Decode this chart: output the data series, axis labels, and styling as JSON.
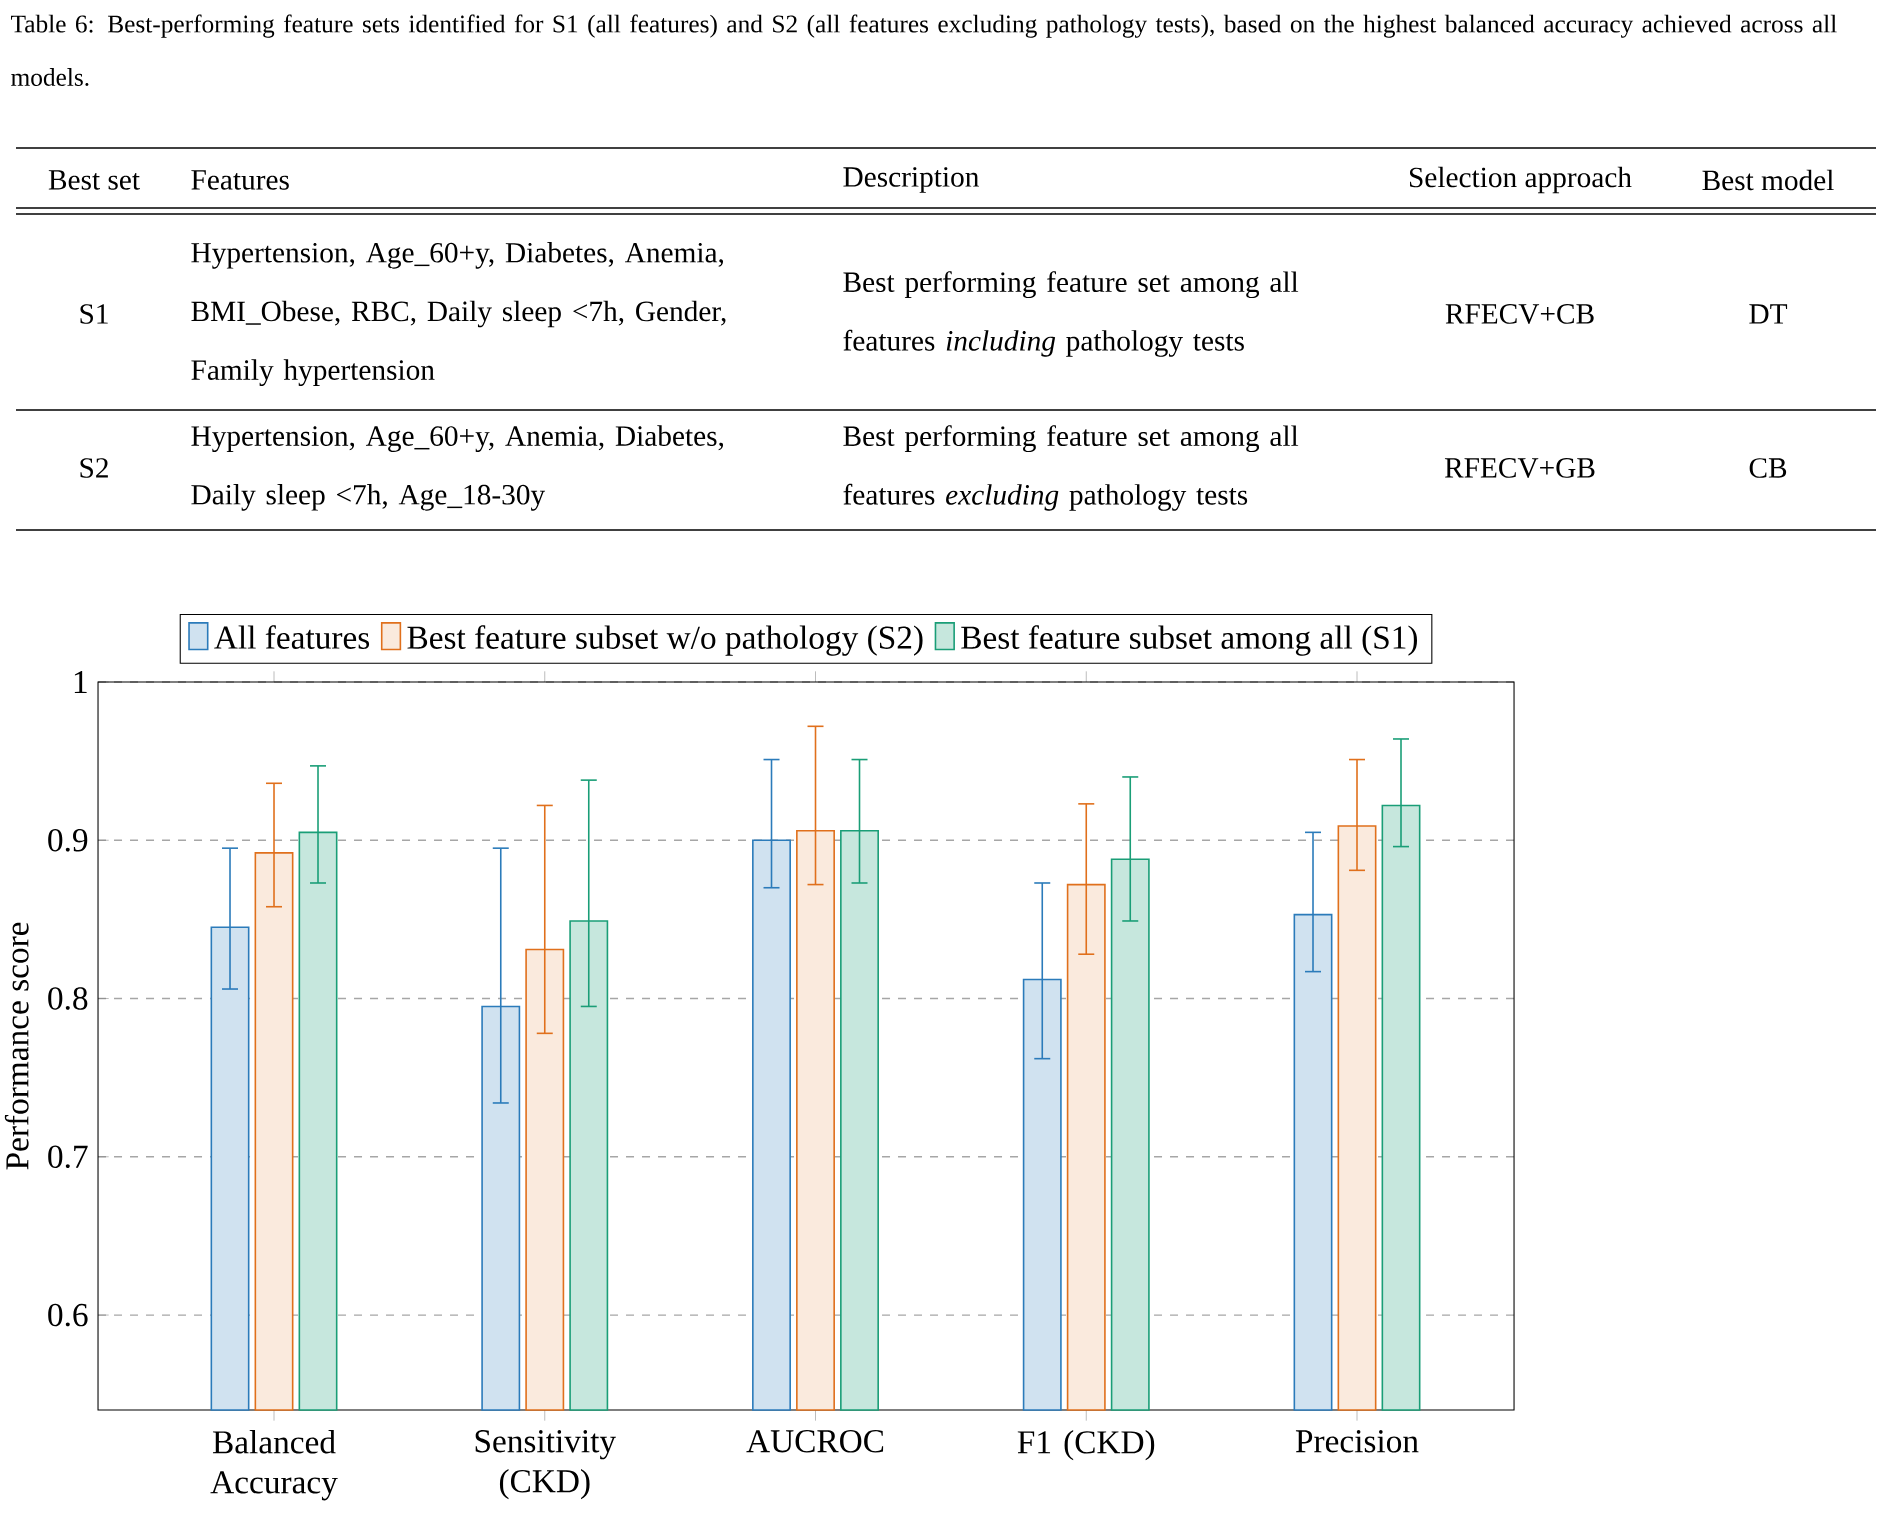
{
  "chart_data": [
    {
      "type": "other",
      "title": "Table 6: Best-performing feature sets identified for S1 (all features) and S2 (all features excluding pathology tests), based on the highest balanced accuracy achieved across all models.",
      "annotations": [
        "Best set",
        "Features",
        "Description",
        "Selection approach",
        "Best model",
        "S1",
        "Hypertension, Age_60+y, Diabetes, Anemia, BMI_Obese, RBC, Daily sleep <7h, Gender, Family hypertension",
        "Best performing feature set among all features *including* pathology tests",
        "RFECV+CB",
        "DT",
        "S2",
        "Hypertension, Age_60+y, Anemia, Diabetes, Daily sleep <7h, Age_18-30y",
        "Best performing feature set among all features *excluding* pathology tests",
        "RFECV+GB",
        "CB"
      ]
    },
    {
      "type": "bar",
      "ylabel": "Performance score",
      "categories": [
        "Balanced Accuracy",
        "Sensitivity (CKD)",
        "AUCROC",
        "F1 (CKD)",
        "Precision"
      ],
      "series": [
        {
          "name": "All features",
          "color": "#2b7bba",
          "values": [
            0.845,
            0.795,
            0.9,
            0.812,
            0.853
          ],
          "errors": [
            [
              0.806,
              0.895
            ],
            [
              0.734,
              0.895
            ],
            [
              0.87,
              0.951
            ],
            [
              0.762,
              0.873
            ],
            [
              0.817,
              0.905
            ]
          ]
        },
        {
          "name": "Best feature subset w/o pathology (S2)",
          "color": "#e0701c",
          "values": [
            0.892,
            0.831,
            0.906,
            0.872,
            0.909
          ],
          "errors": [
            [
              0.858,
              0.936
            ],
            [
              0.778,
              0.922
            ],
            [
              0.872,
              0.972
            ],
            [
              0.828,
              0.923
            ],
            [
              0.881,
              0.951
            ]
          ]
        },
        {
          "name": "Best feature subset among all (S1)",
          "color": "#1a9e77",
          "values": [
            0.905,
            0.849,
            0.906,
            0.888,
            0.922
          ],
          "errors": [
            [
              0.873,
              0.947
            ],
            [
              0.795,
              0.938
            ],
            [
              0.873,
              0.951
            ],
            [
              0.849,
              0.94
            ],
            [
              0.896,
              0.964
            ]
          ]
        }
      ],
      "ylim": [
        0.54,
        1
      ],
      "yticks": [
        0.6,
        0.7,
        0.8,
        0.9,
        1
      ],
      "grid": "y",
      "legend": "top"
    }
  ]
}
